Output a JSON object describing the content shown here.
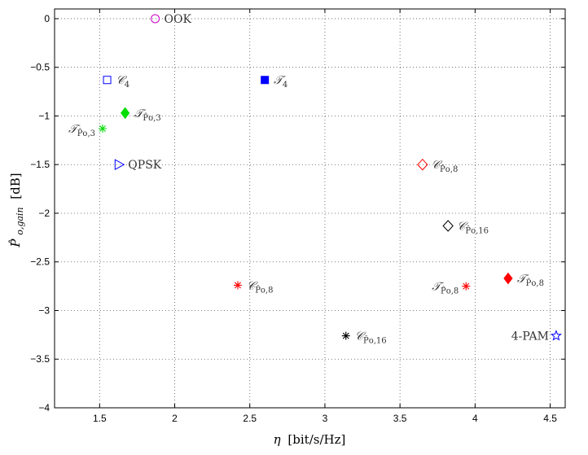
{
  "chart_data": {
    "type": "scatter",
    "xlim": [
      1.2,
      4.6
    ],
    "ylim": [
      -4,
      0.1
    ],
    "xticks": [
      1.5,
      2,
      2.5,
      3,
      3.5,
      4,
      4.5
    ],
    "xtick_labels": [
      "1.5",
      "2",
      "2.5",
      "3",
      "3.5",
      "4",
      "4.5"
    ],
    "yticks": [
      0,
      -0.5,
      -1,
      -1.5,
      -2,
      -2.5,
      -3,
      -3.5,
      -4
    ],
    "ytick_labels": [
      "0",
      "−0.5",
      "−1",
      "−1.5",
      "−2",
      "−2.5",
      "−3",
      "−3.5",
      "−4"
    ],
    "grid": true,
    "xlabel": {
      "symbol": "η",
      "unit": "[bit/s/Hz]"
    },
    "ylabel": {
      "symbol": "P̂",
      "sub": "o,gain",
      "unit": "[dB]"
    },
    "points": [
      {
        "x": 1.87,
        "y": 0.0,
        "marker": "circle-open",
        "color": "#cc00cc",
        "label": {
          "main": "OOK",
          "sub": "",
          "side": "right"
        }
      },
      {
        "x": 1.55,
        "y": -0.63,
        "marker": "square-open",
        "color": "#0000ff",
        "label": {
          "main": "𝒞",
          "sub": "4",
          "side": "right"
        }
      },
      {
        "x": 2.6,
        "y": -0.63,
        "marker": "square-filled",
        "color": "#0000ff",
        "label": {
          "main": "𝒯",
          "sub": "4",
          "side": "right"
        }
      },
      {
        "x": 1.67,
        "y": -0.97,
        "marker": "diamond-filled",
        "color": "#00dd00",
        "label": {
          "main": "𝒯",
          "sub": "P̂o,3",
          "side": "right"
        }
      },
      {
        "x": 1.52,
        "y": -1.13,
        "marker": "asterisk",
        "color": "#00dd00",
        "label": {
          "main": "𝒯",
          "sub": "P̂o,3",
          "side": "left"
        }
      },
      {
        "x": 1.63,
        "y": -1.5,
        "marker": "triangle-right-open",
        "color": "#0000ff",
        "label": {
          "main": "QPSK",
          "sub": "",
          "side": "right"
        }
      },
      {
        "x": 3.65,
        "y": -1.5,
        "marker": "diamond-open",
        "color": "#ff0000",
        "label": {
          "main": "𝒞",
          "sub": "P̂o,8",
          "side": "right"
        }
      },
      {
        "x": 3.82,
        "y": -2.13,
        "marker": "diamond-open",
        "color": "#000000",
        "label": {
          "main": "𝒞",
          "sub": "P̂o,16",
          "side": "right"
        }
      },
      {
        "x": 2.42,
        "y": -2.74,
        "marker": "asterisk",
        "color": "#ff0000",
        "label": {
          "main": "𝒞",
          "sub": "P̂o,8",
          "side": "right"
        }
      },
      {
        "x": 4.22,
        "y": -2.67,
        "marker": "diamond-filled",
        "color": "#ff0000",
        "label": {
          "main": "𝒯",
          "sub": "P̂o,8",
          "side": "right"
        }
      },
      {
        "x": 3.94,
        "y": -2.75,
        "marker": "asterisk",
        "color": "#ff0000",
        "label": {
          "main": "𝒯",
          "sub": "P̂o,8",
          "side": "left"
        }
      },
      {
        "x": 3.14,
        "y": -3.26,
        "marker": "asterisk",
        "color": "#000000",
        "label": {
          "main": "𝒞",
          "sub": "P̂o,16",
          "side": "right"
        }
      },
      {
        "x": 4.54,
        "y": -3.26,
        "marker": "star-open",
        "color": "#0000ff",
        "label": {
          "main": "4-PAM",
          "sub": "",
          "side": "left"
        }
      }
    ]
  }
}
